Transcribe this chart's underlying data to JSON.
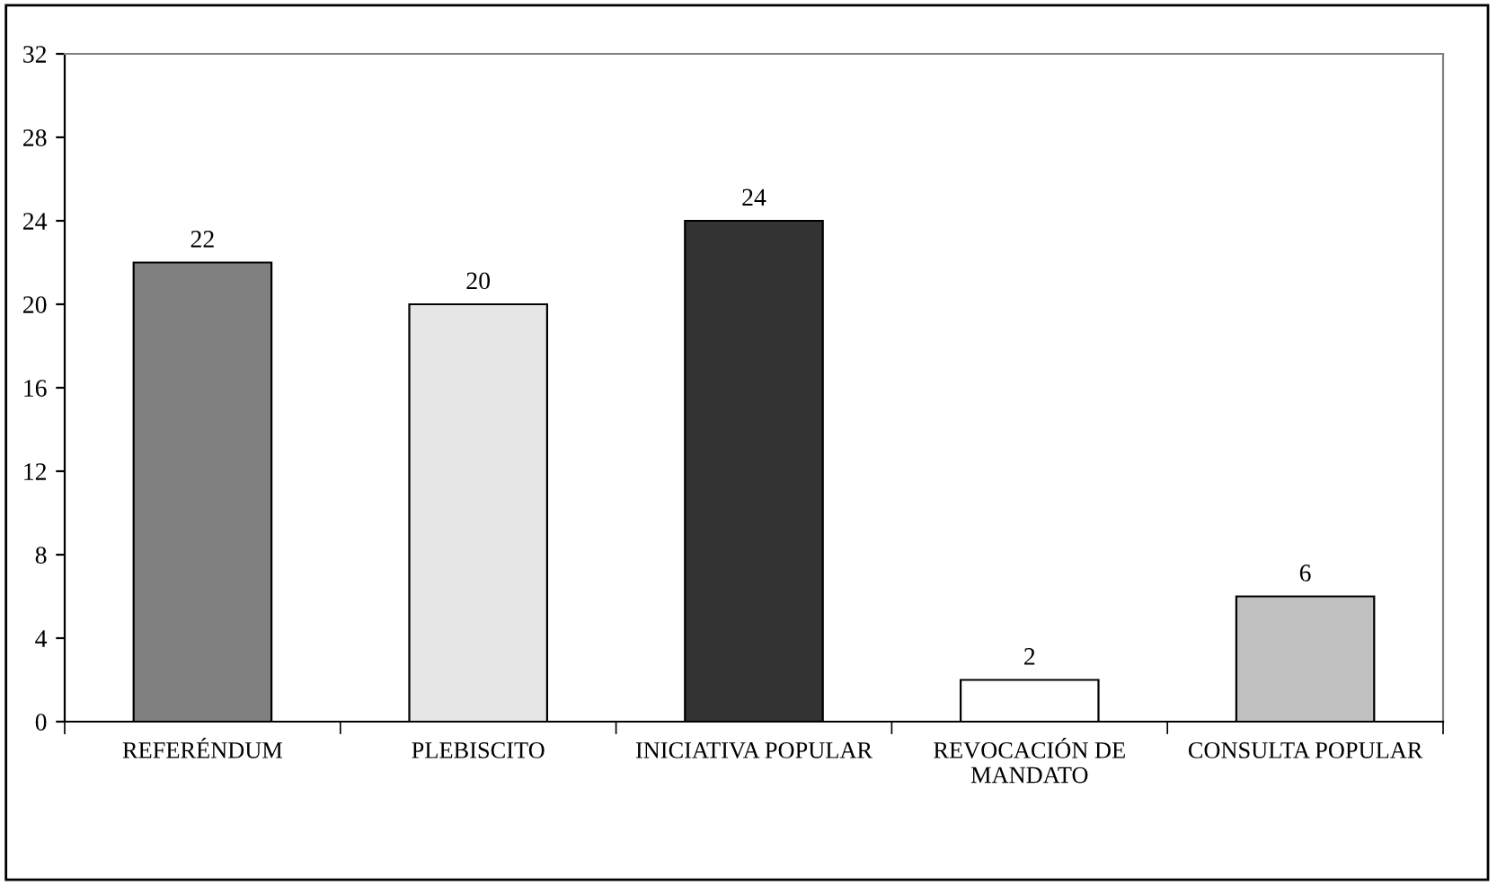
{
  "chart_data": {
    "type": "bar",
    "categories": [
      "REFERÉNDUM",
      "PLEBISCITO",
      "INICIATIVA POPULAR",
      "REVOCACIÓN DE MANDATO",
      "CONSULTA POPULAR"
    ],
    "values": [
      22,
      20,
      24,
      2,
      6
    ],
    "colors": [
      "#808080",
      "#e6e6e6",
      "#333333",
      "#ffffff",
      "#c0c0c0"
    ],
    "ylim": [
      0,
      32
    ],
    "yticks": [
      0,
      4,
      8,
      12,
      16,
      20,
      24,
      28,
      32
    ],
    "data_labels": true,
    "grid": false,
    "legend": false
  }
}
